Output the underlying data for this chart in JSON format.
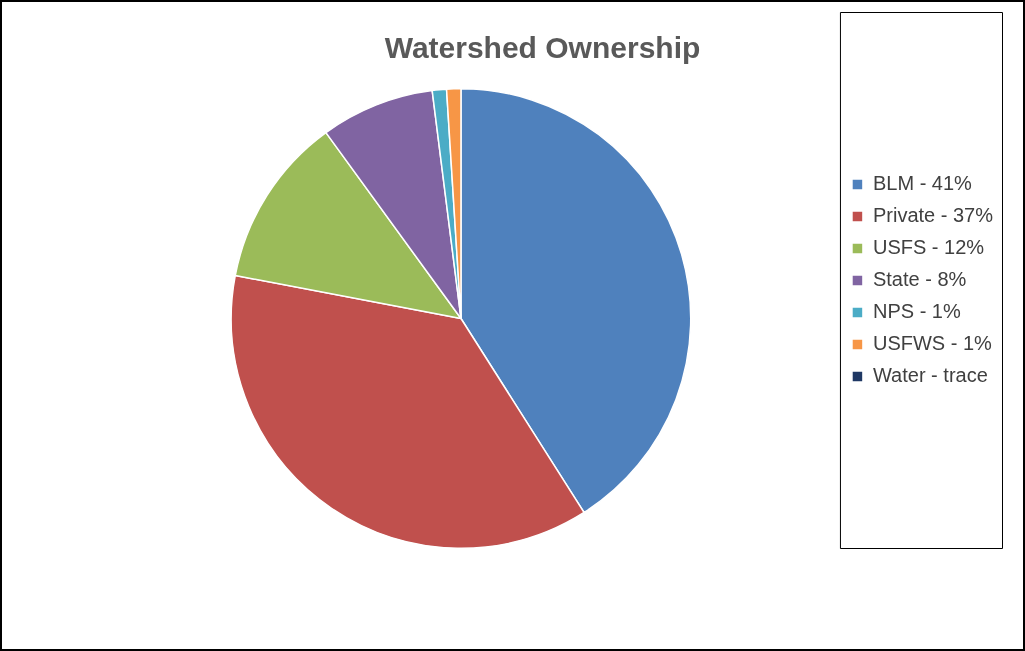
{
  "chart_data": {
    "type": "pie",
    "title": "Watershed Ownership",
    "categories": [
      "BLM - 41%",
      "Private - 37%",
      "USFS - 12%",
      "State - 8%",
      "NPS - 1%",
      "USFWS - 1%",
      "Water - trace"
    ],
    "values": [
      41,
      37,
      12,
      8,
      1,
      1,
      0
    ],
    "colors": [
      "#4f81bd",
      "#c0504d",
      "#9bbb59",
      "#8064a2",
      "#4bacc6",
      "#f79646",
      "#1f3864"
    ],
    "legend": "right"
  }
}
